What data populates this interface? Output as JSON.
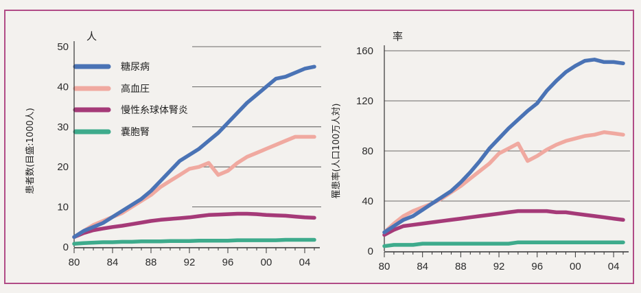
{
  "chart_data": [
    {
      "type": "line",
      "unit_label": "人",
      "ylabel": "患者数(目盛:1000人)",
      "xlabel": "",
      "ylim": [
        0,
        50
      ],
      "yticks": [
        "50",
        "40",
        "30",
        "20",
        "10",
        "0"
      ],
      "yticks_values": [
        50,
        40,
        30,
        20,
        10,
        0
      ],
      "xticks": [
        "80",
        "84",
        "88",
        "92",
        "96",
        "00",
        "04"
      ],
      "xticks_values": [
        1980,
        1984,
        1988,
        1992,
        1996,
        2000,
        2004
      ],
      "xlim": [
        1980,
        2005
      ],
      "legend": "top-left",
      "x": [
        1980,
        1981,
        1982,
        1983,
        1984,
        1985,
        1986,
        1987,
        1988,
        1989,
        1990,
        1991,
        1992,
        1993,
        1994,
        1995,
        1996,
        1997,
        1998,
        1999,
        2000,
        2001,
        2002,
        2003,
        2004,
        2005
      ],
      "series": [
        {
          "name": "糖尿病",
          "color": "#4a73b5",
          "values": [
            2.5,
            4,
            5,
            6,
            7.5,
            9,
            10.5,
            12,
            14,
            16.5,
            19,
            21.5,
            23,
            24.5,
            26.5,
            28.5,
            31,
            33.5,
            36,
            38,
            40,
            42,
            42.5,
            43.5,
            44.5,
            45
          ]
        },
        {
          "name": "高血圧",
          "color": "#f0a9a0",
          "values": [
            2.5,
            4,
            5.5,
            6.5,
            7.5,
            8.5,
            10,
            11.5,
            13,
            15,
            16.5,
            18,
            19.5,
            20,
            21,
            18,
            19,
            21,
            22.5,
            23.5,
            24.5,
            25.5,
            26.5,
            27.5,
            27.5,
            27.5
          ]
        },
        {
          "name": "慢性糸球体腎炎",
          "color": "#a53a78",
          "values": [
            2.5,
            3.5,
            4.2,
            4.6,
            5,
            5.3,
            5.7,
            6.1,
            6.5,
            6.8,
            7,
            7.2,
            7.4,
            7.7,
            8,
            8.1,
            8.2,
            8.3,
            8.3,
            8.2,
            8.0,
            7.9,
            7.8,
            7.6,
            7.4,
            7.3
          ]
        },
        {
          "name": "嚢胞腎",
          "color": "#3eab8c",
          "values": [
            0.8,
            1,
            1.1,
            1.2,
            1.2,
            1.3,
            1.3,
            1.4,
            1.4,
            1.4,
            1.5,
            1.5,
            1.5,
            1.6,
            1.6,
            1.6,
            1.6,
            1.7,
            1.7,
            1.7,
            1.7,
            1.7,
            1.8,
            1.8,
            1.8,
            1.8
          ]
        }
      ]
    },
    {
      "type": "line",
      "unit_label": "率",
      "ylabel": "罹患率(人口100万人対)",
      "xlabel": "",
      "ylim": [
        0,
        160
      ],
      "yticks": [
        "160",
        "120",
        "80",
        "40",
        "0"
      ],
      "yticks_values": [
        160,
        120,
        80,
        40,
        0
      ],
      "xticks": [
        "80",
        "84",
        "88",
        "92",
        "96",
        "00",
        "04"
      ],
      "xticks_values": [
        1980,
        1984,
        1988,
        1992,
        1996,
        2000,
        2004
      ],
      "xlim": [
        1980,
        2005
      ],
      "x": [
        1980,
        1981,
        1982,
        1983,
        1984,
        1985,
        1986,
        1987,
        1988,
        1989,
        1990,
        1991,
        1992,
        1993,
        1994,
        1995,
        1996,
        1997,
        1998,
        1999,
        2000,
        2001,
        2002,
        2003,
        2004,
        2005
      ],
      "series": [
        {
          "name": "糖尿病",
          "color": "#4a73b5",
          "values": [
            15,
            20,
            25,
            28,
            33,
            38,
            43,
            48,
            55,
            63,
            72,
            82,
            90,
            98,
            105,
            112,
            118,
            128,
            136,
            143,
            148,
            152,
            153,
            151,
            151,
            150
          ]
        },
        {
          "name": "高血圧",
          "color": "#f0a9a0",
          "values": [
            15,
            22,
            28,
            32,
            35,
            38,
            42,
            47,
            52,
            58,
            64,
            70,
            78,
            82,
            86,
            72,
            76,
            81,
            85,
            88,
            90,
            92,
            93,
            95,
            94,
            93
          ]
        },
        {
          "name": "慢性糸球体腎炎",
          "color": "#a53a78",
          "values": [
            13,
            17,
            20,
            21,
            22,
            23,
            24,
            25,
            26,
            27,
            28,
            29,
            30,
            31,
            32,
            32,
            32,
            32,
            31,
            31,
            30,
            29,
            28,
            27,
            26,
            25
          ]
        },
        {
          "name": "嚢胞腎",
          "color": "#3eab8c",
          "values": [
            4,
            5,
            5,
            5,
            6,
            6,
            6,
            6,
            6,
            6,
            6,
            6,
            6,
            6,
            7,
            7,
            7,
            7,
            7,
            7,
            7,
            7,
            7,
            7,
            7,
            7
          ]
        }
      ]
    }
  ]
}
